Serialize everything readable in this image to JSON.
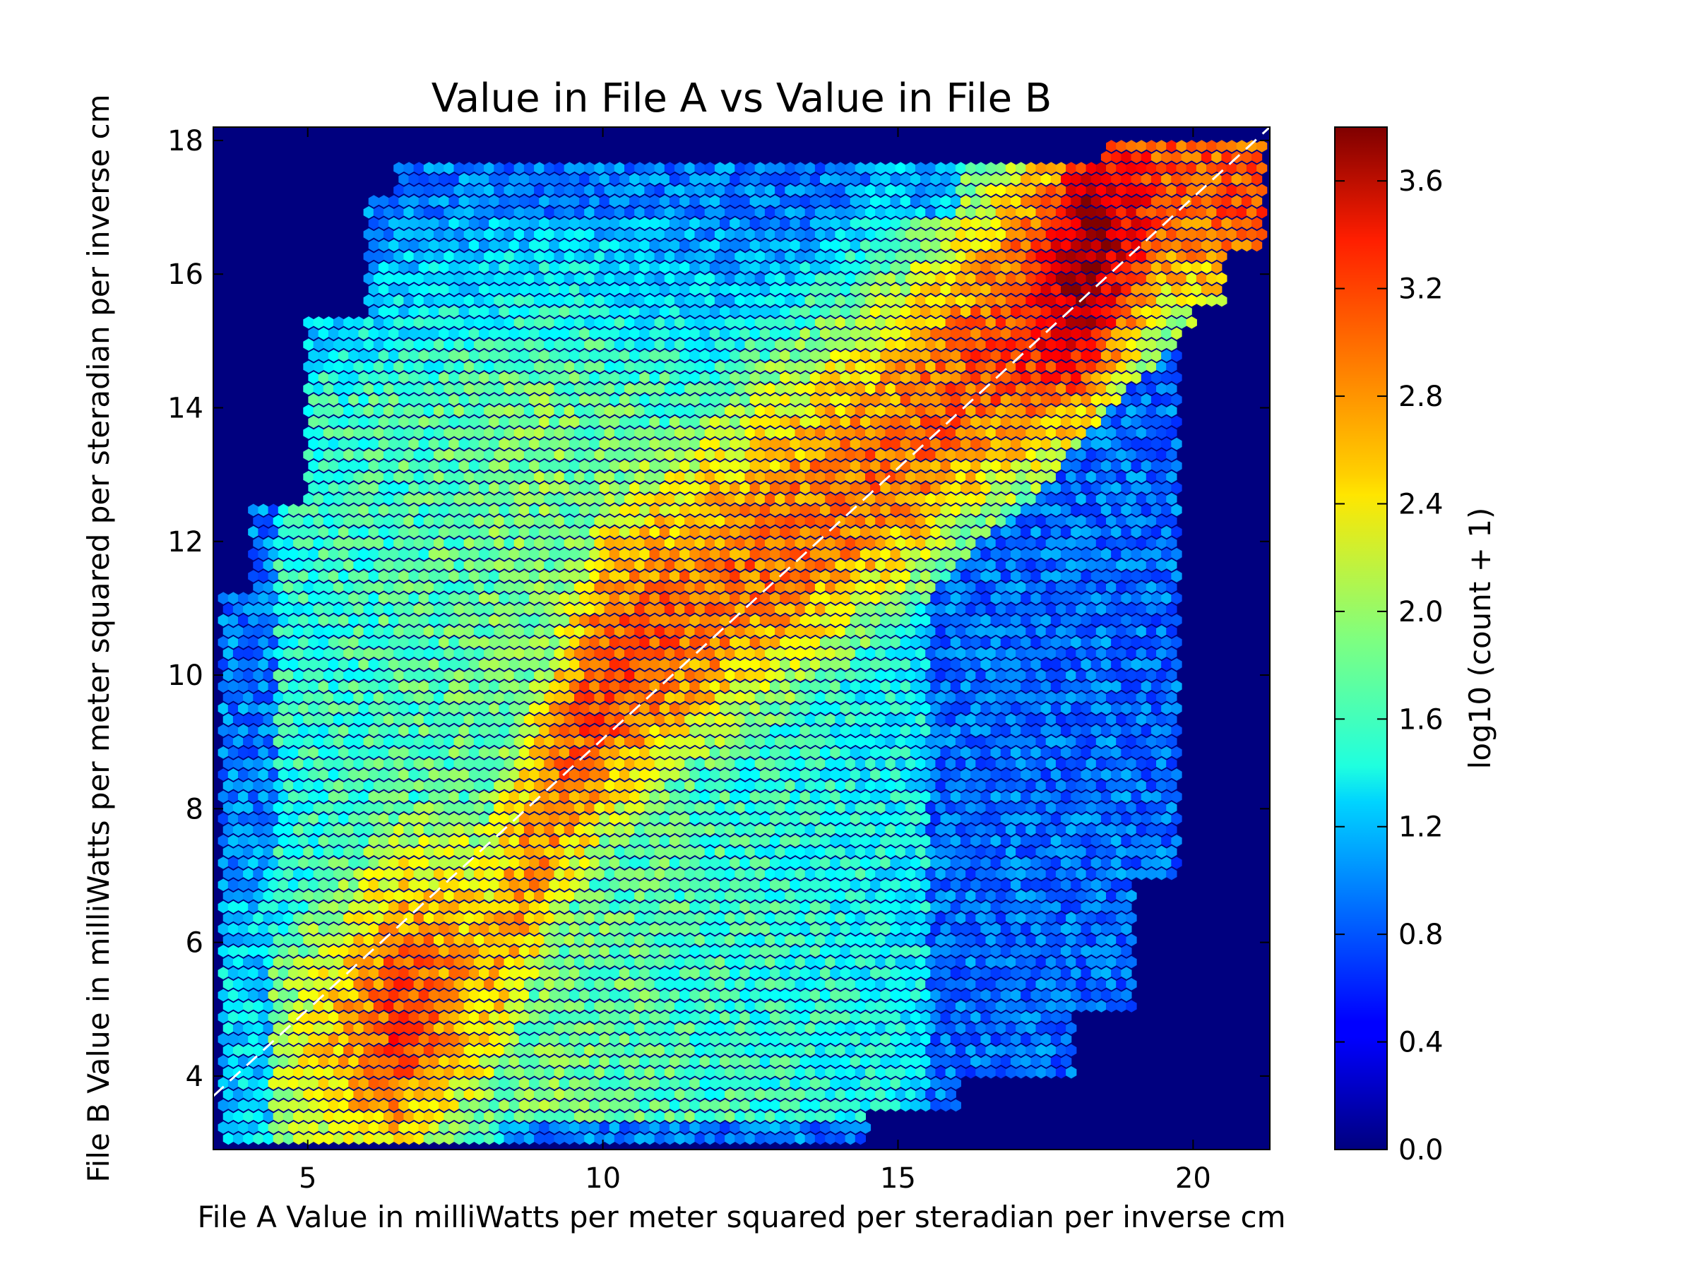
{
  "chart_data": {
    "type": "heatmap",
    "subtype": "hexbin",
    "title": "Value in File A vs Value in File B",
    "xlabel": "File A Value in milliWatts per meter squared per steradian per inverse cm",
    "ylabel": "File B Value in milliWatts per meter squared per steradian per inverse cm",
    "xlim": [
      3.4,
      21.3
    ],
    "ylim": [
      2.9,
      18.2
    ],
    "xticks": [
      5,
      10,
      15,
      20
    ],
    "yticks": [
      4,
      6,
      8,
      10,
      12,
      14,
      16,
      18
    ],
    "colorscale": "jet",
    "background_color": "#00007f",
    "colorbar": {
      "label": "log10 (count + 1)",
      "range": [
        0.0,
        3.8
      ],
      "ticks": [
        "0.0",
        "0.4",
        "0.8",
        "1.2",
        "1.6",
        "2.0",
        "2.4",
        "2.8",
        "3.2",
        "3.6"
      ]
    },
    "reference_line": {
      "style": "dashed",
      "color": "#ffffff",
      "x": [
        3.4,
        21.3
      ],
      "y": [
        3.7,
        18.2
      ]
    },
    "density_ridge": [
      {
        "x": 4.0,
        "y": 3.8,
        "value": 1.8
      },
      {
        "x": 6.5,
        "y": 4.7,
        "value": 3.1
      },
      {
        "x": 8.0,
        "y": 5.4,
        "value": 2.6
      },
      {
        "x": 9.5,
        "y": 8.8,
        "value": 2.9
      },
      {
        "x": 10.0,
        "y": 9.7,
        "value": 3.1
      },
      {
        "x": 11.5,
        "y": 10.8,
        "value": 2.9
      },
      {
        "x": 13.5,
        "y": 12.1,
        "value": 2.9
      },
      {
        "x": 15.0,
        "y": 13.2,
        "value": 2.9
      },
      {
        "x": 16.5,
        "y": 14.6,
        "value": 3.0
      },
      {
        "x": 17.5,
        "y": 15.3,
        "value": 3.3
      },
      {
        "x": 18.2,
        "y": 16.1,
        "value": 3.8
      },
      {
        "x": 19.5,
        "y": 17.3,
        "value": 3.0
      }
    ],
    "grid": false
  }
}
